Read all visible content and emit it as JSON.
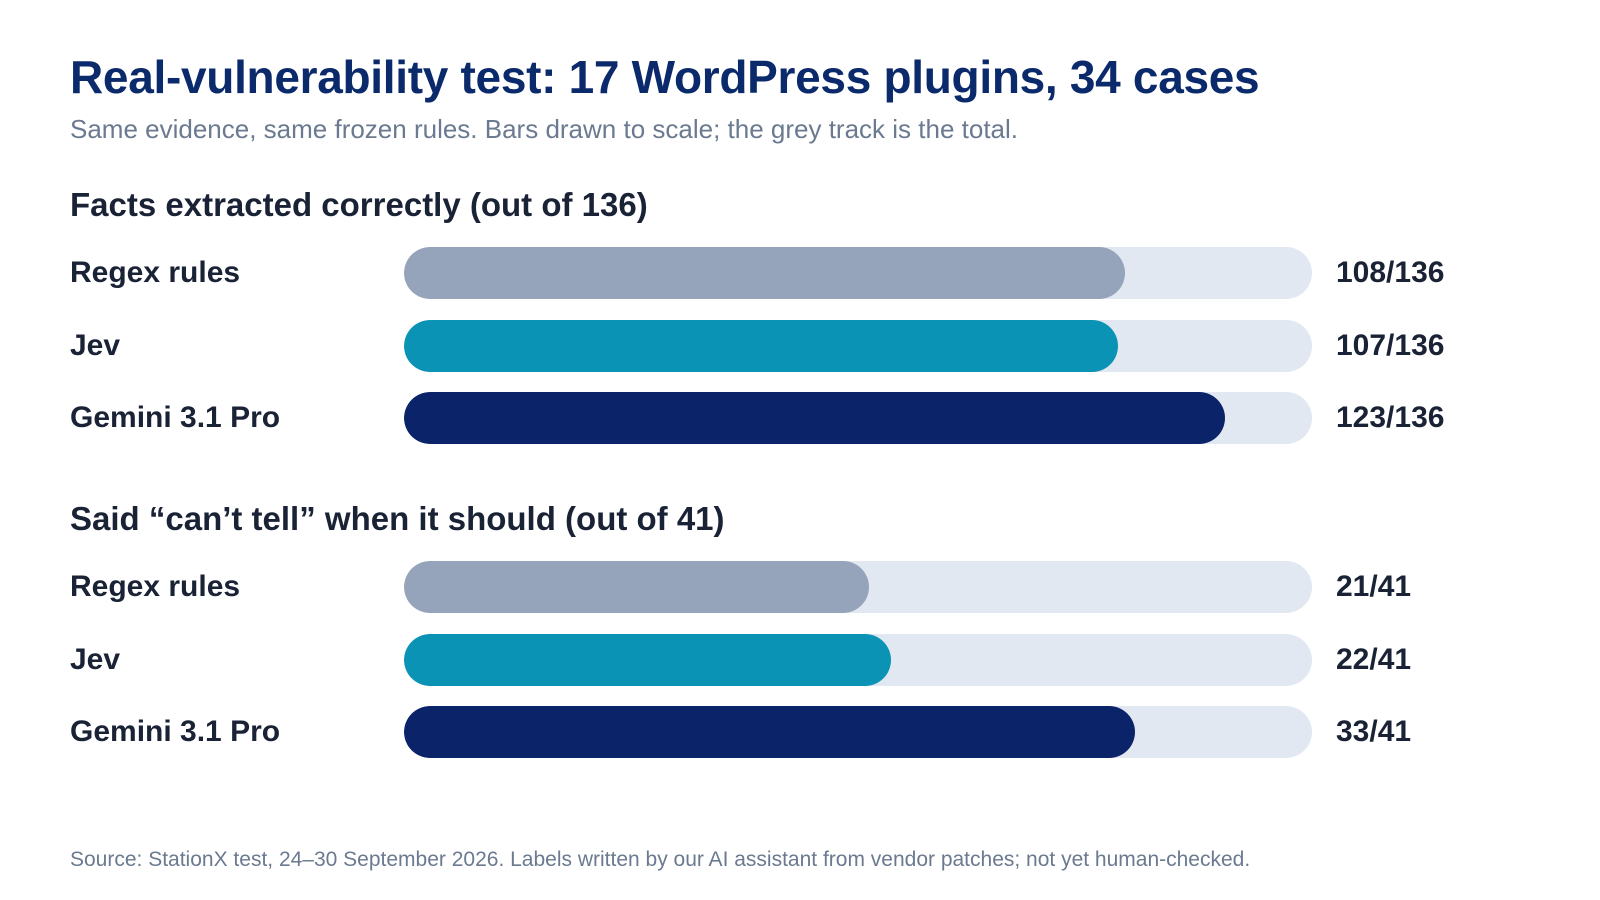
{
  "title": "Real-vulnerability test: 17 WordPress plugins, 34 cases",
  "subtitle": "Same evidence, same frozen rules. Bars drawn to scale; the grey track is the total.",
  "source": "Source: StationX test, 24–30 September 2026. Labels written by our AI assistant from vendor patches; not yet human-checked.",
  "colors": {
    "regex": "#95a4ba",
    "jev": "#0b93b5",
    "gemini": "#0b2369",
    "track": "#e2e8f1"
  },
  "chart_data": [
    {
      "type": "bar",
      "orientation": "horizontal",
      "title": "Facts extracted correctly (out of 136)",
      "total": 136,
      "categories": [
        "Regex rules",
        "Jev",
        "Gemini 3.1 Pro"
      ],
      "values": [
        108,
        107,
        123
      ],
      "value_labels": [
        "108/136",
        "107/136",
        "123/136"
      ],
      "color_keys": [
        "regex",
        "jev",
        "gemini"
      ]
    },
    {
      "type": "bar",
      "orientation": "horizontal",
      "title": "Said “can’t tell” when it should (out of 41)",
      "total": 41,
      "categories": [
        "Regex rules",
        "Jev",
        "Gemini 3.1 Pro"
      ],
      "values": [
        21,
        22,
        33
      ],
      "value_labels": [
        "21/41",
        "22/41",
        "33/41"
      ],
      "color_keys": [
        "regex",
        "jev",
        "gemini"
      ]
    }
  ]
}
